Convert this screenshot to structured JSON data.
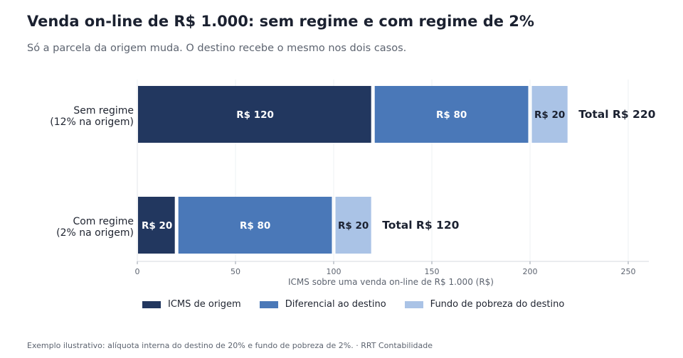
{
  "header": {
    "title": "Venda on-line de R$ 1.000: sem regime e com regime de 2%",
    "subtitle": "Só a parcela da origem muda. O destino recebe o mesmo nos dois casos."
  },
  "footnote": "Exemplo ilustrativo: alíquota interna do destino de 20% e fundo de pobreza de 2%.  ·  RRT Contabilidade",
  "chart_data": {
    "type": "bar",
    "orientation": "horizontal",
    "stacked": true,
    "categories": [
      [
        "Sem regime",
        "(12% na origem)"
      ],
      [
        "Com regime",
        "(2% na origem)"
      ]
    ],
    "series": [
      {
        "name": "ICMS de origem",
        "values": [
          120,
          20
        ],
        "labels": [
          "R$ 120",
          "R$ 20"
        ],
        "color": "#22375f",
        "label_color": "#ffffff"
      },
      {
        "name": "Diferencial ao destino",
        "values": [
          80,
          80
        ],
        "labels": [
          "R$ 80",
          "R$ 80"
        ],
        "color": "#4a78b8",
        "label_color": "#ffffff"
      },
      {
        "name": "Fundo de pobreza do destino",
        "values": [
          20,
          20
        ],
        "labels": [
          "R$ 20",
          "R$ 20"
        ],
        "color": "#aac3e6",
        "label_color": "#1b2130"
      }
    ],
    "totals": [
      "Total R$ 220",
      "Total R$ 120"
    ],
    "xlabel": "ICMS sobre uma venda on-line de R$ 1.000 (R$)",
    "ylabel": "",
    "xlim": [
      0,
      260
    ],
    "xticks": [
      0,
      50,
      100,
      150,
      200,
      250
    ],
    "grid": "vertical",
    "legend": "bottom"
  }
}
